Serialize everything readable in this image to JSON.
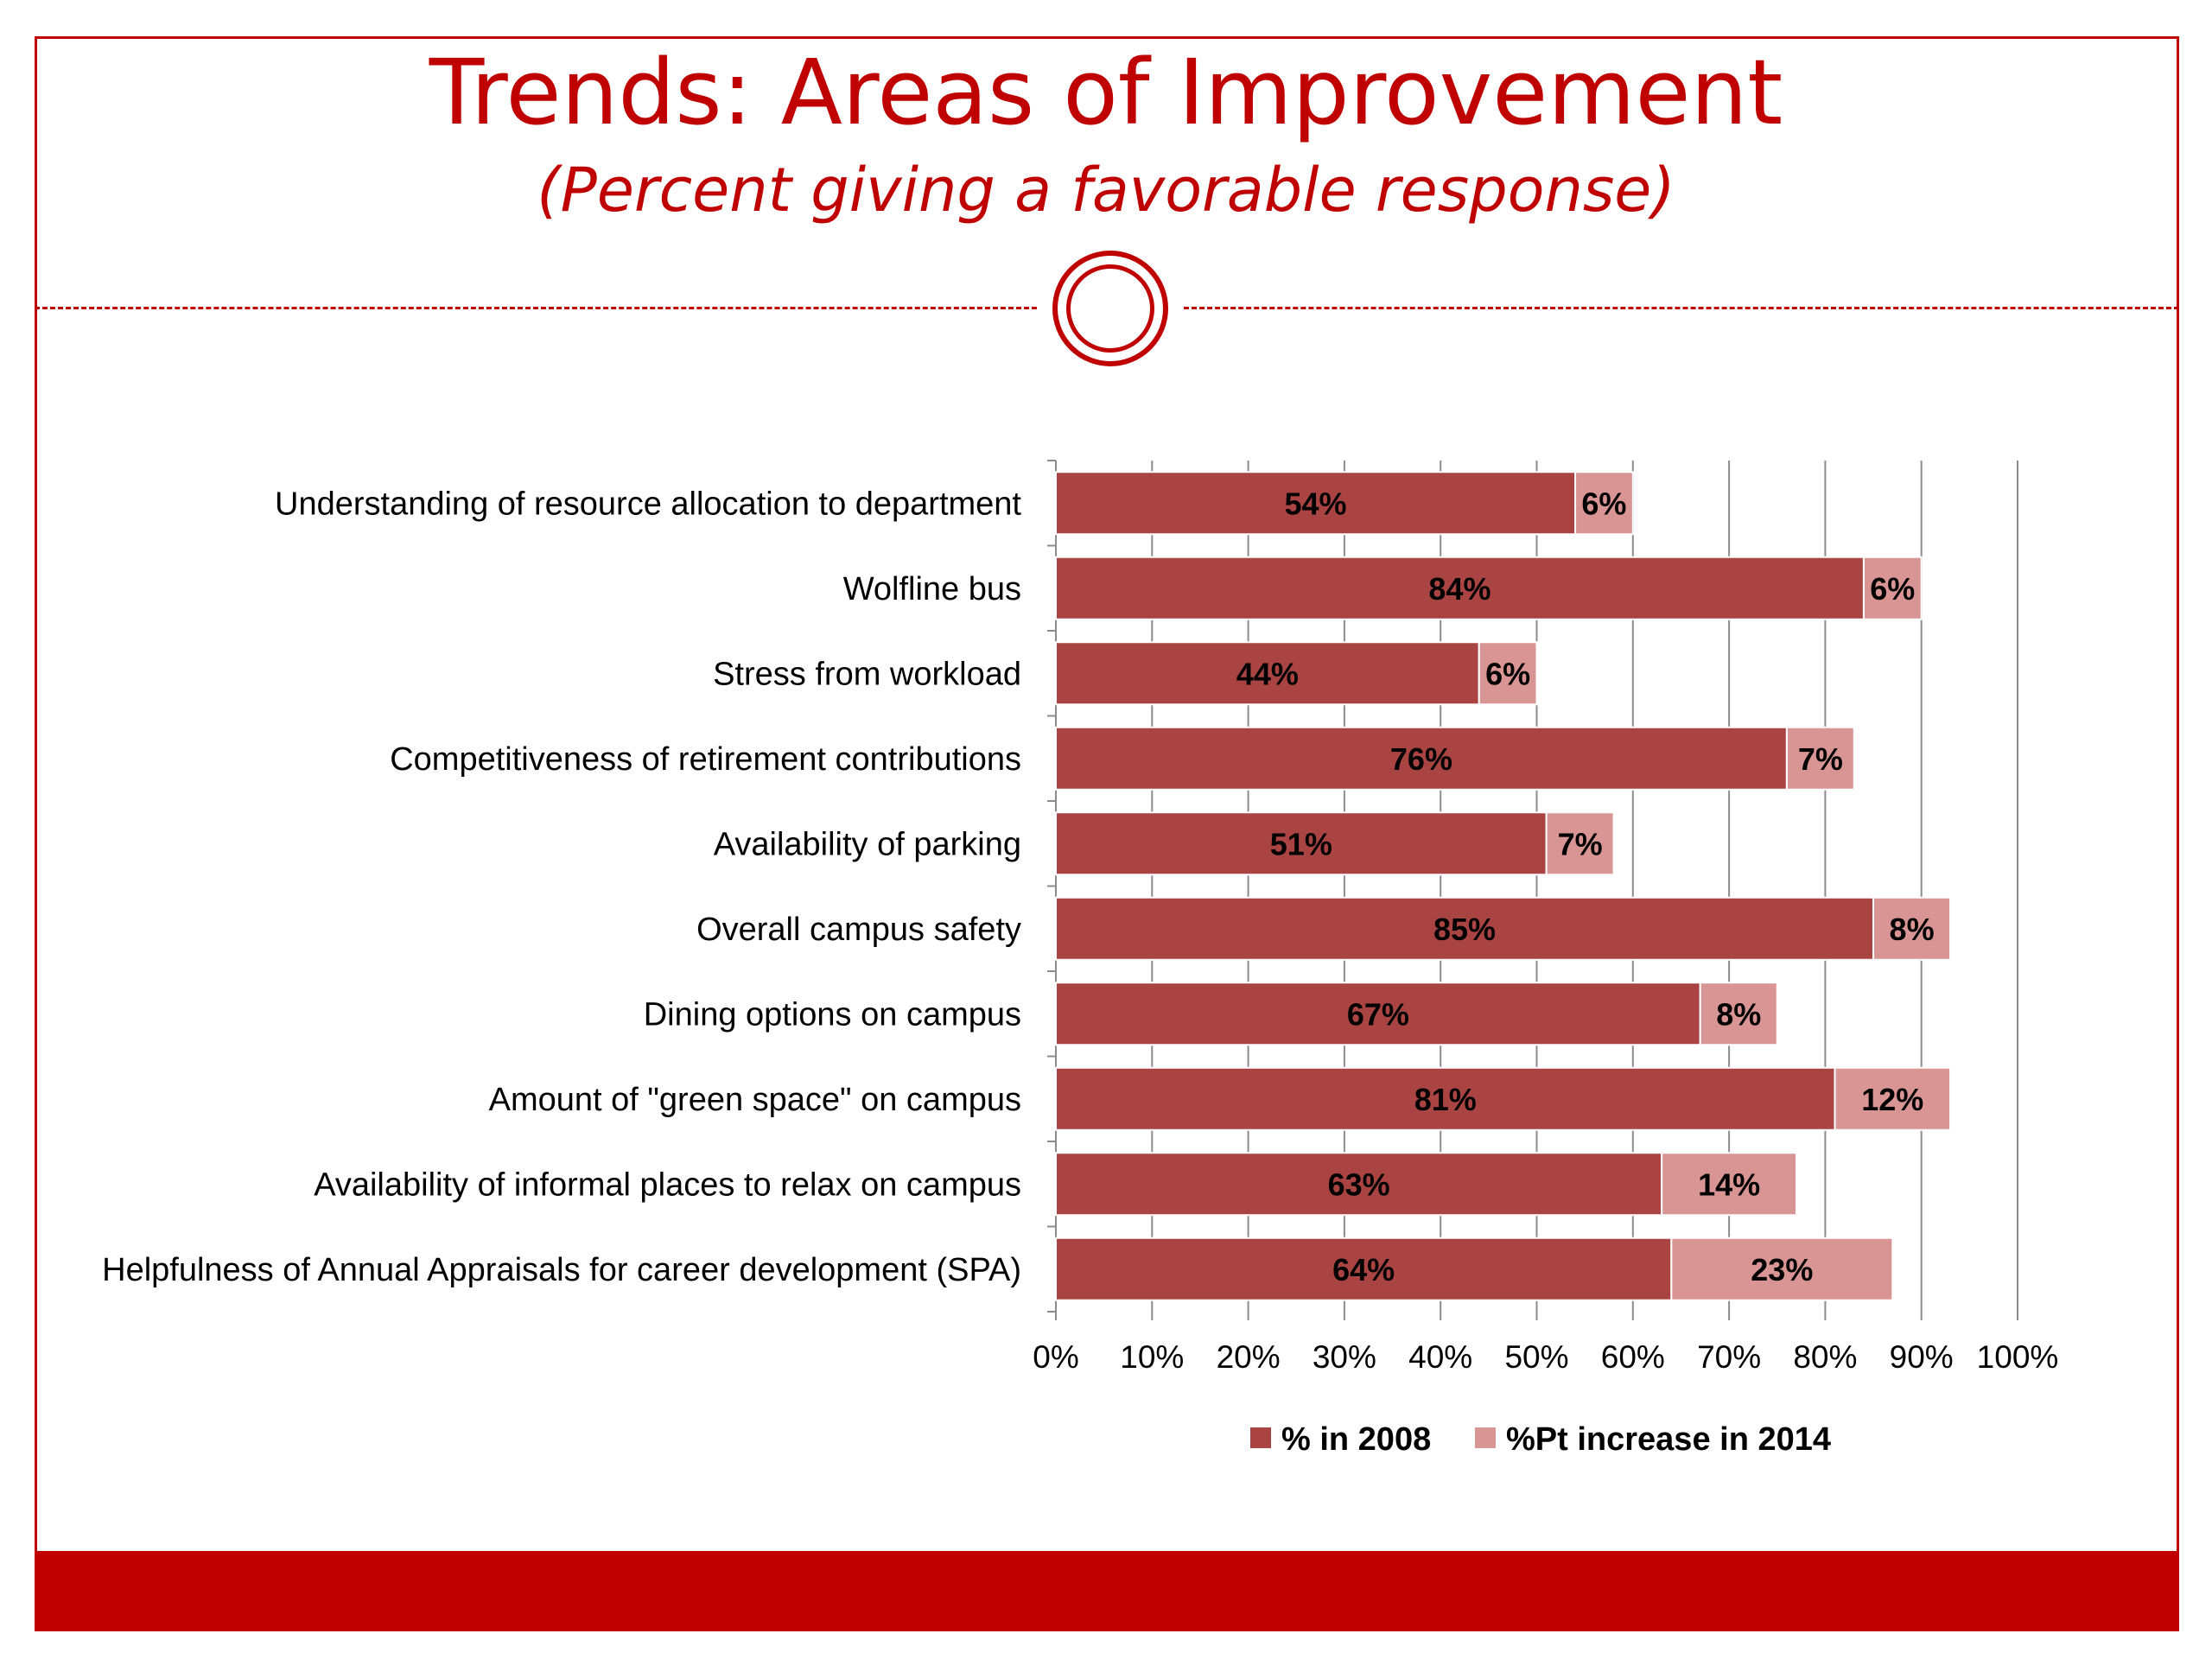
{
  "slide": {
    "title": "Trends: Areas of Improvement",
    "subtitle": "(Percent giving a favorable response)"
  },
  "colors": {
    "accent": "#c00000",
    "series_2008": "#a94442",
    "series_increase": "#d99594"
  },
  "chart_data": {
    "type": "bar",
    "orientation": "horizontal",
    "stacked": true,
    "categories": [
      "Understanding of resource allocation to department",
      "Wolfline bus",
      "Stress from workload",
      "Competitiveness of retirement contributions",
      "Availability of parking",
      "Overall campus safety",
      "Dining options on campus",
      "Amount of \"green space\" on campus",
      "Availability of informal places to relax on campus",
      "Helpfulness of Annual Appraisals for career development (SPA)"
    ],
    "series": [
      {
        "name": "% in 2008",
        "values": [
          54,
          84,
          44,
          76,
          51,
          85,
          67,
          81,
          63,
          64
        ],
        "labels": [
          "54%",
          "84%",
          "44%",
          "76%",
          "51%",
          "85%",
          "67%",
          "81%",
          "63%",
          "64%"
        ]
      },
      {
        "name": "%Pt increase in 2014",
        "values": [
          6,
          6,
          6,
          7,
          7,
          8,
          8,
          12,
          14,
          23
        ],
        "labels": [
          "6%",
          "6%",
          "6%",
          "7%",
          "7%",
          "8%",
          "8%",
          "12%",
          "14%",
          "23%"
        ]
      }
    ],
    "xlim": [
      0,
      100
    ],
    "x_ticks": [
      "0%",
      "10%",
      "20%",
      "30%",
      "40%",
      "50%",
      "60%",
      "70%",
      "80%",
      "90%",
      "100%"
    ],
    "grid": "vertical",
    "legend": "bottom"
  }
}
